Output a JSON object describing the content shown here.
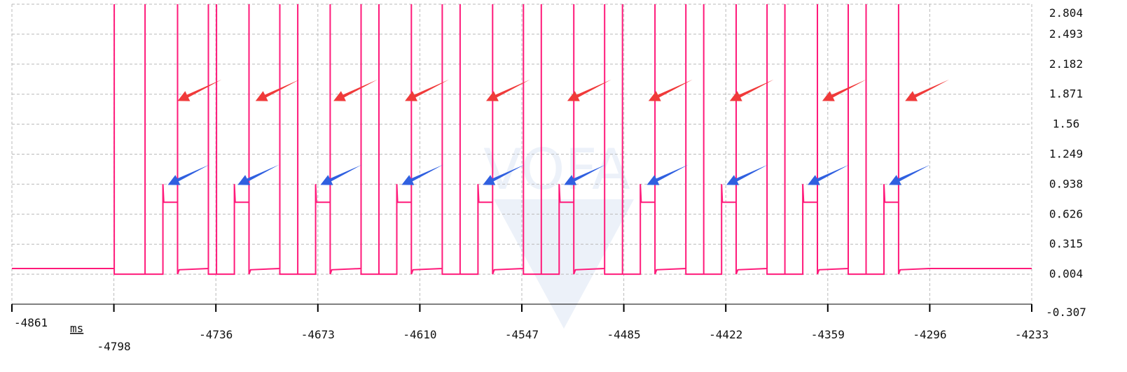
{
  "chart_data": {
    "type": "line",
    "xlabel": "",
    "ylabel": "",
    "x_unit": "ms",
    "xlim": [
      -4861,
      -4233
    ],
    "ylim": [
      -0.307,
      2.804
    ],
    "x_ticks": [
      "-4861",
      "-4798",
      "-4736",
      "-4673",
      "-4610",
      "-4547",
      "-4485",
      "-4422",
      "-4359",
      "-4296",
      "-4233"
    ],
    "y_ticks": [
      "2.804",
      "2.493",
      "2.182",
      "1.871",
      "1.56",
      "1.249",
      "0.938",
      "0.626",
      "0.315",
      "0.004",
      "-0.307"
    ],
    "grid": true,
    "legend": "none",
    "watermark": "VOFA",
    "colors": {
      "signal": "#ff1a7a",
      "grid": "#b9b9b9",
      "red_arrow": "#f03a3a",
      "blue_arrow": "#3060e0",
      "axis": "#000000"
    },
    "series": [
      {
        "color": "#ff1a7a",
        "points": [
          [
            -4861,
            0.063
          ],
          [
            -4798,
            0.063
          ],
          [
            -4798,
            2.804
          ],
          [
            -4798,
            0.004
          ],
          [
            -4779,
            0.004
          ],
          [
            -4779,
            2.804
          ],
          [
            -4779,
            0.004
          ],
          [
            -4768,
            0.004
          ],
          [
            -4768,
            0.938
          ],
          [
            -4767.5,
            0.75
          ],
          [
            -4759,
            0.75
          ],
          [
            -4759,
            2.804
          ],
          [
            -4759,
            0.004
          ],
          [
            -4758,
            0.05
          ],
          [
            -4740,
            0.063
          ],
          [
            -4740,
            2.804
          ],
          [
            -4740,
            0.004
          ],
          [
            -4735,
            0.004
          ],
          [
            -4735,
            2.804
          ],
          [
            -4735,
            0.004
          ],
          [
            -4724,
            0.004
          ],
          [
            -4724,
            0.938
          ],
          [
            -4723.5,
            0.75
          ],
          [
            -4715,
            0.75
          ],
          [
            -4715,
            2.804
          ],
          [
            -4715,
            0.004
          ],
          [
            -4714,
            0.05
          ],
          [
            -4696,
            0.063
          ],
          [
            -4696,
            2.804
          ],
          [
            -4696,
            0.004
          ],
          [
            -4685,
            0.004
          ],
          [
            -4685,
            2.804
          ],
          [
            -4685,
            0.004
          ],
          [
            -4674,
            0.004
          ],
          [
            -4674,
            0.938
          ],
          [
            -4673.5,
            0.75
          ],
          [
            -4665,
            0.75
          ],
          [
            -4665,
            2.804
          ],
          [
            -4665,
            0.004
          ],
          [
            -4664,
            0.05
          ],
          [
            -4646,
            0.063
          ],
          [
            -4646,
            2.804
          ],
          [
            -4646,
            0.004
          ],
          [
            -4635,
            0.004
          ],
          [
            -4635,
            2.804
          ],
          [
            -4635,
            0.004
          ],
          [
            -4624,
            0.004
          ],
          [
            -4624,
            0.938
          ],
          [
            -4623.5,
            0.75
          ],
          [
            -4615,
            0.75
          ],
          [
            -4615,
            2.804
          ],
          [
            -4615,
            0.004
          ],
          [
            -4614,
            0.05
          ],
          [
            -4596,
            0.063
          ],
          [
            -4596,
            2.804
          ],
          [
            -4596,
            0.004
          ],
          [
            -4585,
            0.004
          ],
          [
            -4585,
            2.804
          ],
          [
            -4585,
            0.004
          ],
          [
            -4574,
            0.004
          ],
          [
            -4574,
            0.938
          ],
          [
            -4573.5,
            0.75
          ],
          [
            -4565,
            0.75
          ],
          [
            -4565,
            2.804
          ],
          [
            -4565,
            0.004
          ],
          [
            -4564,
            0.05
          ],
          [
            -4546,
            0.063
          ],
          [
            -4546,
            2.804
          ],
          [
            -4546,
            0.004
          ],
          [
            -4535,
            0.004
          ],
          [
            -4535,
            2.804
          ],
          [
            -4535,
            0.004
          ],
          [
            -4524,
            0.004
          ],
          [
            -4524,
            0.938
          ],
          [
            -4523.5,
            0.75
          ],
          [
            -4515,
            0.75
          ],
          [
            -4515,
            2.804
          ],
          [
            -4515,
            0.004
          ],
          [
            -4514,
            0.05
          ],
          [
            -4496,
            0.063
          ],
          [
            -4496,
            2.804
          ],
          [
            -4496,
            0.004
          ],
          [
            -4485,
            0.004
          ],
          [
            -4485,
            2.804
          ],
          [
            -4485,
            0.004
          ],
          [
            -4474,
            0.004
          ],
          [
            -4474,
            0.938
          ],
          [
            -4473.5,
            0.75
          ],
          [
            -4465,
            0.75
          ],
          [
            -4465,
            2.804
          ],
          [
            -4465,
            0.004
          ],
          [
            -4464,
            0.05
          ],
          [
            -4446,
            0.063
          ],
          [
            -4446,
            2.804
          ],
          [
            -4446,
            0.004
          ],
          [
            -4435,
            0.004
          ],
          [
            -4435,
            2.804
          ],
          [
            -4435,
            0.004
          ],
          [
            -4424,
            0.004
          ],
          [
            -4424,
            0.938
          ],
          [
            -4423.5,
            0.75
          ],
          [
            -4415,
            0.75
          ],
          [
            -4415,
            2.804
          ],
          [
            -4415,
            0.004
          ],
          [
            -4414,
            0.05
          ],
          [
            -4396,
            0.063
          ],
          [
            -4396,
            2.804
          ],
          [
            -4396,
            0.004
          ],
          [
            -4385,
            0.004
          ],
          [
            -4385,
            2.804
          ],
          [
            -4385,
            0.004
          ],
          [
            -4374,
            0.004
          ],
          [
            -4374,
            0.938
          ],
          [
            -4373.5,
            0.75
          ],
          [
            -4365,
            0.75
          ],
          [
            -4365,
            2.804
          ],
          [
            -4365,
            0.004
          ],
          [
            -4364,
            0.05
          ],
          [
            -4346,
            0.063
          ],
          [
            -4346,
            2.804
          ],
          [
            -4346,
            0.004
          ],
          [
            -4335,
            0.004
          ],
          [
            -4335,
            2.804
          ],
          [
            -4335,
            0.004
          ],
          [
            -4324,
            0.004
          ],
          [
            -4324,
            0.938
          ],
          [
            -4323.5,
            0.75
          ],
          [
            -4315,
            0.75
          ],
          [
            -4315,
            2.804
          ],
          [
            -4315,
            0.004
          ],
          [
            -4314,
            0.05
          ],
          [
            -4296,
            0.063
          ],
          [
            -4233,
            0.063
          ]
        ]
      }
    ],
    "annotations": {
      "red_arrow_tips": [
        [
          -4759,
          1.8
        ],
        [
          -4711,
          1.8
        ],
        [
          -4663,
          1.8
        ],
        [
          -4619,
          1.8
        ],
        [
          -4569,
          1.8
        ],
        [
          -4519,
          1.8
        ],
        [
          -4469,
          1.8
        ],
        [
          -4419,
          1.8
        ],
        [
          -4362,
          1.8
        ],
        [
          -4311,
          1.8
        ]
      ],
      "blue_arrow_tips": [
        [
          -4765,
          0.93
        ],
        [
          -4722,
          0.93
        ],
        [
          -4671,
          0.93
        ],
        [
          -4621,
          0.93
        ],
        [
          -4571,
          0.93
        ],
        [
          -4521,
          0.93
        ],
        [
          -4470,
          0.93
        ],
        [
          -4421,
          0.93
        ],
        [
          -4371,
          0.93
        ],
        [
          -4321,
          0.93
        ]
      ]
    }
  }
}
